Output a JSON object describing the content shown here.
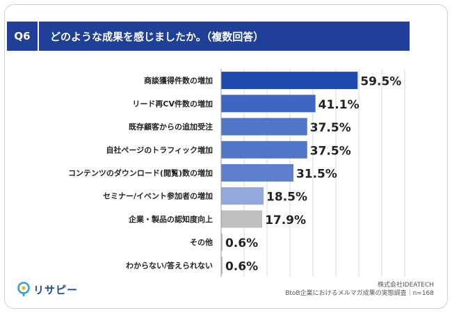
{
  "header": {
    "question_label": "Q6",
    "question_text": "どのような成果を感じましたか。（複数回答）"
  },
  "colors": {
    "header_blue": "#1f3f99",
    "bar_gray": "#bfbfbf",
    "grid": "#d9d9d9",
    "text": "#222222"
  },
  "chart_data": {
    "type": "bar",
    "orientation": "horizontal",
    "categories": [
      "商談獲得件数の増加",
      "リード再CV件数の増加",
      "既存顧客からの追加受注",
      "自社ページのトラフィック増加",
      "コンテンツのダウンロード(閲覧)数の増加",
      "セミナー/イベント参加者の増加",
      "企業・製品の認知度向上",
      "その他",
      "わからない/答えられない"
    ],
    "values": [
      59.5,
      41.1,
      37.5,
      37.5,
      31.5,
      18.5,
      17.9,
      0.6,
      0.6
    ],
    "value_labels": [
      "59.5%",
      "41.1%",
      "37.5%",
      "37.5%",
      "31.5%",
      "18.5%",
      "17.9%",
      "0.6%",
      "0.6%"
    ],
    "bar_colors": [
      "#1f4bb0",
      "#3e66c2",
      "#5076c8",
      "#5076c8",
      "#5c80cc",
      "#92a8dc",
      "#bfbfbf",
      "#bfbfbf",
      "#bfbfbf"
    ],
    "xlim": [
      0,
      80
    ],
    "grid": true
  },
  "footer": {
    "logo_text": "リサピー",
    "company": "株式会社IDEATECH",
    "survey": "BtoB企業におけるメルマガ成果の実態調査｜n=168"
  }
}
